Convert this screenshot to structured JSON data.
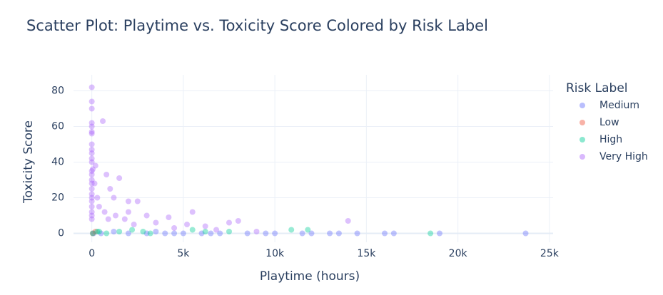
{
  "chart_data": {
    "type": "scatter",
    "title": "Scatter Plot: Playtime vs. Toxicity Score Colored by Risk Label",
    "x_label": "Playtime (hours)",
    "y_label": "Toxicity Score",
    "legend_title": "Risk Label",
    "xlim": [
      -1000,
      25200
    ],
    "ylim": [
      -5,
      89
    ],
    "xticks": [
      0,
      {
        "value": 5000,
        "label": "5k"
      },
      {
        "value": 10000,
        "label": "10k"
      },
      {
        "value": 15000,
        "label": "15k"
      },
      {
        "value": 20000,
        "label": "20k"
      },
      {
        "value": 25000,
        "label": "25k"
      }
    ],
    "yticks": [
      0,
      20,
      40,
      60,
      80
    ],
    "grid": true,
    "series": [
      {
        "name": "Medium",
        "color": "#636efa",
        "x": [
          100,
          500,
          1200,
          2000,
          3000,
          3500,
          4000,
          4500,
          5000,
          6000,
          6500,
          7000,
          8500,
          9500,
          10000,
          11500,
          12000,
          13000,
          13500,
          14500,
          16000,
          16500,
          19000,
          23700
        ],
        "values": [
          0,
          0,
          1,
          0,
          0,
          1,
          0,
          0,
          0,
          0,
          0,
          0,
          0,
          0,
          0,
          0,
          0,
          0,
          0,
          0,
          0,
          0,
          0,
          0
        ]
      },
      {
        "name": "Low",
        "color": "#ef553b",
        "x": [
          50,
          200
        ],
        "values": [
          0,
          1
        ]
      },
      {
        "name": "High",
        "color": "#00cc96",
        "x": [
          300,
          800,
          1500,
          2200,
          2800,
          3200,
          5500,
          6200,
          7500,
          10900,
          11800,
          18500,
          50,
          400
        ],
        "values": [
          1,
          0,
          1,
          2,
          1,
          0,
          2,
          1,
          1,
          2,
          2,
          0,
          0,
          1
        ]
      },
      {
        "name": "Very High",
        "color": "#ab63fa",
        "x": [
          0,
          0,
          0,
          0,
          0,
          0,
          0,
          0,
          0,
          0,
          0,
          0,
          0,
          0,
          0,
          0,
          0,
          0,
          0,
          0,
          0,
          0,
          0,
          0,
          200,
          600,
          800,
          1000,
          1500,
          1200,
          2000,
          2500,
          3000,
          4200,
          5500,
          5200,
          6200,
          7500,
          8000,
          14000,
          1800,
          2300,
          3500,
          400,
          700,
          300,
          150,
          50,
          2000,
          900,
          1300,
          4500,
          6800,
          9000
        ],
        "values": [
          82,
          74,
          70,
          62,
          60,
          57,
          56,
          50,
          47,
          45,
          42,
          40,
          35,
          33,
          30,
          28,
          25,
          22,
          20,
          18,
          15,
          12,
          10,
          8,
          38,
          63,
          33,
          25,
          31,
          20,
          18,
          18,
          10,
          9,
          12,
          5,
          4,
          6,
          7,
          7,
          8,
          5,
          6,
          15,
          12,
          20,
          28,
          36,
          12,
          8,
          10,
          3,
          2,
          1
        ]
      }
    ]
  }
}
